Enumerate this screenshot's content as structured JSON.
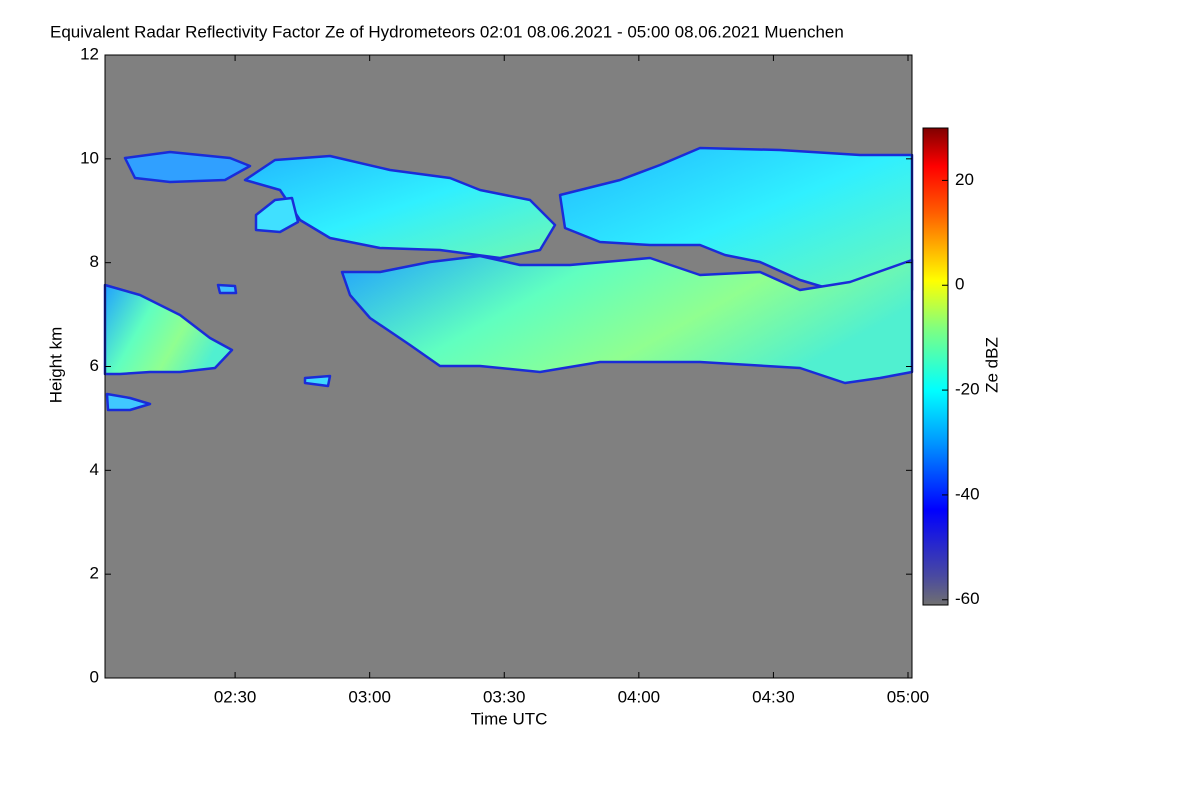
{
  "chart_data": {
    "type": "heatmap",
    "title": "Equivalent Radar Reflectivity Factor Ze of Hydrometeors   02:01 08.06.2021 - 05:00 08.06.2021 Muenchen",
    "x_label": "Time UTC",
    "y_label": "Height km",
    "colorbar_label": "Ze dBZ",
    "xlim": [
      121,
      300
    ],
    "xticks": [
      {
        "value": 150,
        "label": "02:30"
      },
      {
        "value": 180,
        "label": "03:00"
      },
      {
        "value": 210,
        "label": "03:30"
      },
      {
        "value": 240,
        "label": "04:00"
      },
      {
        "value": 270,
        "label": "04:30"
      },
      {
        "value": 300,
        "label": "05:00"
      }
    ],
    "ylim": [
      0,
      12
    ],
    "yticks": [
      0,
      2,
      4,
      6,
      8,
      10,
      12
    ],
    "clim": [
      -61,
      30
    ],
    "cticks": [
      -60,
      -40,
      -20,
      0,
      20
    ],
    "background": "#808080"
  }
}
